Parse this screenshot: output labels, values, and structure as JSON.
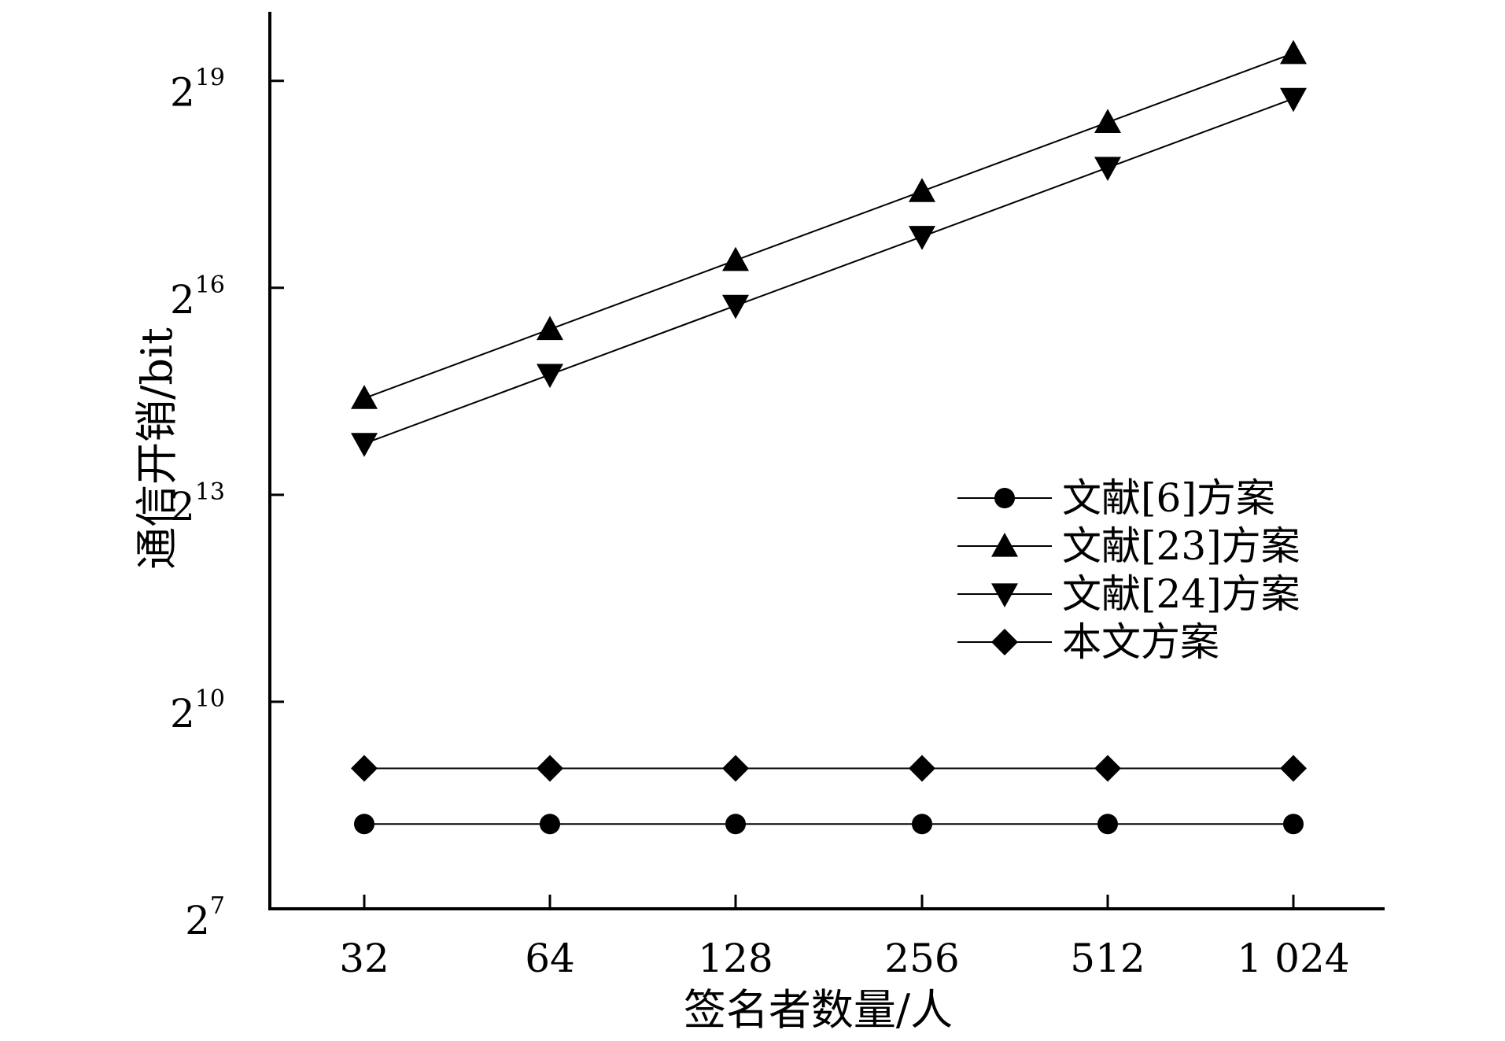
{
  "chart_data": {
    "type": "line",
    "xlabel": "签名者数量/人",
    "ylabel": "通信开销/bit",
    "y_scale": "log2",
    "categories": [
      "32",
      "64",
      "128",
      "256",
      "512",
      "1 024"
    ],
    "yticks": [
      {
        "base": "2",
        "exp": "7"
      },
      {
        "base": "2",
        "exp": "10"
      },
      {
        "base": "2",
        "exp": "13"
      },
      {
        "base": "2",
        "exp": "16"
      },
      {
        "base": "2",
        "exp": "19"
      }
    ],
    "yticks_value": [
      128,
      1024,
      8192,
      65536,
      524288
    ],
    "ylim": [
      128,
      1048576
    ],
    "legend_position": "center-right",
    "grid": false,
    "series": [
      {
        "name": "文献[6]方案",
        "marker": "circle",
        "values": [
          300,
          300,
          300,
          300,
          300,
          300
        ]
      },
      {
        "name": "文献[23]方案",
        "marker": "triangle-up",
        "values": [
          21600,
          43200,
          86400,
          172800,
          345600,
          691200
        ]
      },
      {
        "name": "文献[24]方案",
        "marker": "triangle-down",
        "values": [
          13700,
          27400,
          54800,
          109600,
          219200,
          438400
        ]
      },
      {
        "name": "本文方案",
        "marker": "diamond",
        "values": [
          525,
          525,
          525,
          525,
          525,
          525
        ]
      }
    ]
  }
}
